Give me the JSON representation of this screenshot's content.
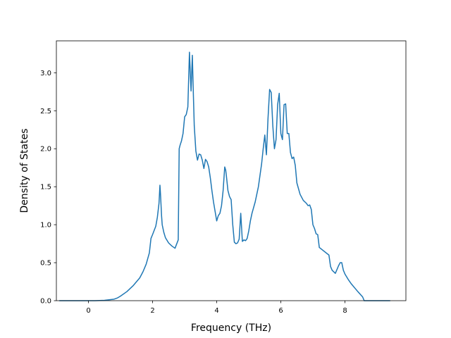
{
  "chart_data": {
    "type": "line",
    "xlabel": "Frequency (THz)",
    "ylabel": "Density of States",
    "xlim": [
      -1.0,
      9.9
    ],
    "ylim": [
      0.0,
      3.42
    ],
    "xticks": [
      0,
      2,
      4,
      6,
      8
    ],
    "yticks": [
      0.0,
      0.5,
      1.0,
      1.5,
      2.0,
      2.5,
      3.0
    ],
    "xtick_labels": [
      "0",
      "2",
      "4",
      "6",
      "8"
    ],
    "ytick_labels": [
      "0.0",
      "0.5",
      "1.0",
      "1.5",
      "2.0",
      "2.5",
      "3.0"
    ],
    "grid": false,
    "legend": "none",
    "series": [
      {
        "color": "#1f77b4",
        "x": [
          -0.9,
          -0.2,
          0.2,
          0.5,
          0.8,
          0.9,
          1.0,
          1.2,
          1.4,
          1.6,
          1.7,
          1.8,
          1.9,
          1.95,
          2.0,
          2.1,
          2.15,
          2.2,
          2.23,
          2.25,
          2.28,
          2.3,
          2.35,
          2.4,
          2.5,
          2.6,
          2.7,
          2.8,
          2.83,
          2.86,
          2.9,
          2.95,
          3.0,
          3.05,
          3.1,
          3.15,
          3.2,
          3.24,
          3.27,
          3.3,
          3.35,
          3.4,
          3.45,
          3.5,
          3.55,
          3.6,
          3.65,
          3.7,
          3.75,
          3.8,
          3.85,
          3.9,
          4.0,
          4.05,
          4.1,
          4.15,
          4.2,
          4.25,
          4.28,
          4.3,
          4.35,
          4.4,
          4.45,
          4.5,
          4.55,
          4.6,
          4.65,
          4.7,
          4.75,
          4.8,
          4.85,
          4.9,
          4.95,
          5.0,
          5.05,
          5.1,
          5.2,
          5.3,
          5.4,
          5.45,
          5.5,
          5.55,
          5.6,
          5.65,
          5.7,
          5.75,
          5.8,
          5.85,
          5.9,
          5.95,
          6.0,
          6.05,
          6.1,
          6.15,
          6.2,
          6.25,
          6.3,
          6.35,
          6.4,
          6.45,
          6.5,
          6.6,
          6.7,
          6.8,
          6.85,
          6.9,
          6.95,
          7.0,
          7.05,
          7.1,
          7.15,
          7.2,
          7.5,
          7.55,
          7.6,
          7.7,
          7.8,
          7.85,
          7.9,
          7.95,
          8.0,
          8.1,
          8.2,
          8.4,
          8.55,
          8.6,
          8.65,
          9.4
        ],
        "y": [
          0.0,
          0.0,
          0.0,
          0.005,
          0.02,
          0.035,
          0.06,
          0.12,
          0.2,
          0.3,
          0.38,
          0.48,
          0.63,
          0.82,
          0.87,
          0.98,
          1.1,
          1.28,
          1.52,
          1.38,
          1.12,
          1.0,
          0.9,
          0.83,
          0.76,
          0.72,
          0.69,
          0.8,
          2.0,
          2.05,
          2.1,
          2.2,
          2.42,
          2.45,
          2.55,
          3.27,
          2.76,
          3.23,
          2.75,
          2.3,
          1.97,
          1.85,
          1.93,
          1.92,
          1.85,
          1.74,
          1.86,
          1.83,
          1.76,
          1.62,
          1.45,
          1.3,
          1.05,
          1.12,
          1.15,
          1.25,
          1.45,
          1.76,
          1.72,
          1.65,
          1.45,
          1.37,
          1.33,
          1.0,
          0.77,
          0.75,
          0.76,
          0.81,
          1.15,
          0.78,
          0.8,
          0.79,
          0.82,
          0.92,
          1.05,
          1.15,
          1.3,
          1.5,
          1.8,
          2.0,
          2.18,
          1.92,
          2.4,
          2.78,
          2.74,
          2.3,
          2.0,
          2.12,
          2.58,
          2.73,
          2.2,
          2.12,
          2.58,
          2.59,
          2.2,
          2.2,
          1.95,
          1.87,
          1.89,
          1.78,
          1.55,
          1.4,
          1.32,
          1.28,
          1.25,
          1.26,
          1.2,
          1.0,
          0.95,
          0.88,
          0.87,
          0.7,
          0.6,
          0.45,
          0.4,
          0.36,
          0.46,
          0.5,
          0.5,
          0.4,
          0.35,
          0.28,
          0.22,
          0.12,
          0.05,
          0.0,
          0.0,
          0.0
        ]
      }
    ]
  }
}
